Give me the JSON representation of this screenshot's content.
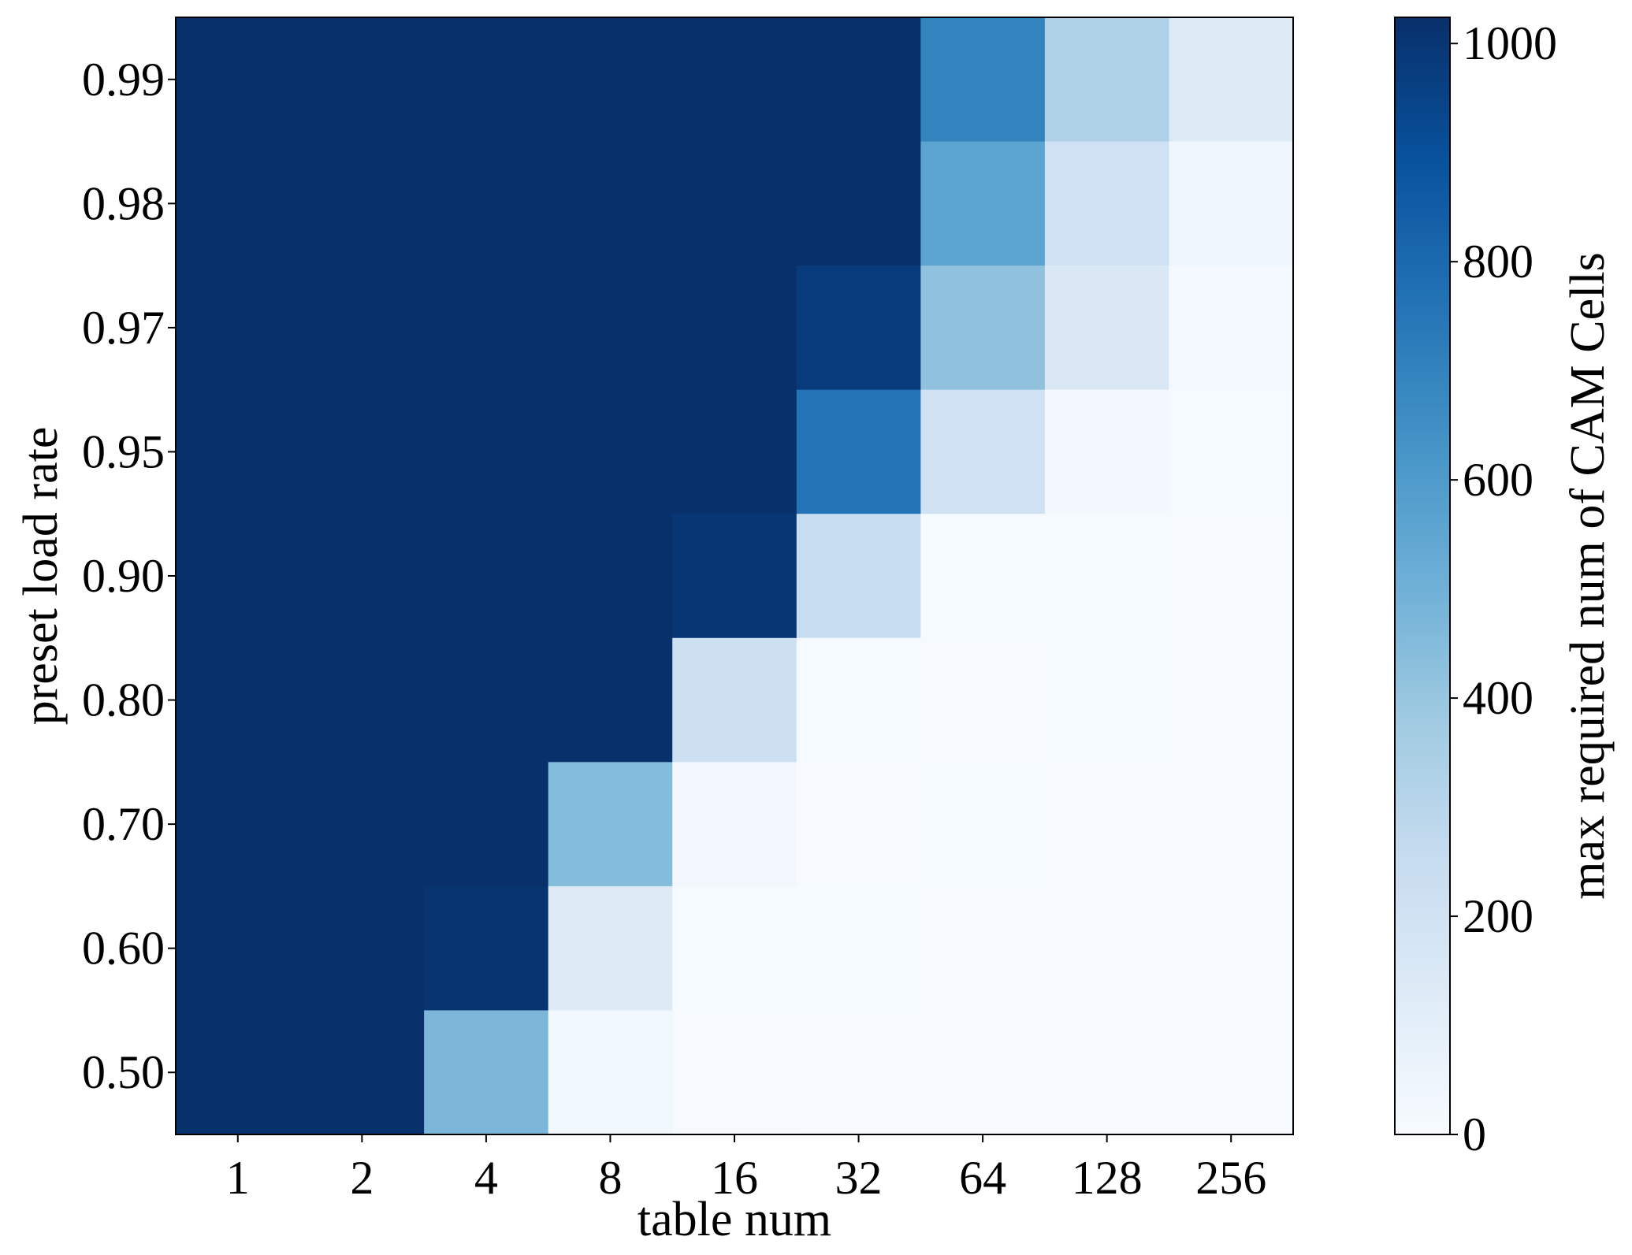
{
  "chart_data": {
    "type": "heatmap",
    "xlabel": "table num",
    "ylabel": "preset load rate",
    "colorbar_label": "max required num of CAM Cells",
    "x_categories": [
      "1",
      "2",
      "4",
      "8",
      "16",
      "32",
      "64",
      "128",
      "256"
    ],
    "y_categories": [
      "0.99",
      "0.98",
      "0.97",
      "0.95",
      "0.90",
      "0.80",
      "0.70",
      "0.60",
      "0.50"
    ],
    "values": [
      [
        1024,
        1024,
        1024,
        1024,
        1024,
        1024,
        700,
        330,
        140
      ],
      [
        1024,
        1024,
        1024,
        1024,
        1024,
        1024,
        560,
        210,
        40
      ],
      [
        1024,
        1024,
        1024,
        1024,
        1024,
        980,
        420,
        150,
        20
      ],
      [
        1024,
        1024,
        1024,
        1024,
        1024,
        760,
        210,
        25,
        12
      ],
      [
        1024,
        1024,
        1024,
        1024,
        1000,
        240,
        12,
        8,
        5
      ],
      [
        1024,
        1024,
        1024,
        1024,
        220,
        12,
        5,
        3,
        2
      ],
      [
        1024,
        1024,
        1024,
        450,
        30,
        6,
        3,
        2,
        1
      ],
      [
        1024,
        1024,
        1010,
        130,
        8,
        3,
        2,
        1,
        1
      ],
      [
        1024,
        1024,
        470,
        35,
        5,
        2,
        1,
        1,
        1
      ]
    ],
    "colorbar_ticks": [
      "0",
      "200",
      "400",
      "600",
      "800",
      "1000"
    ],
    "vmin": 0,
    "vmax": 1024,
    "colormap": "Blues",
    "colormap_stops": [
      "#f7fbff",
      "#deebf7",
      "#c6dbef",
      "#9ecae1",
      "#6baed6",
      "#4292c6",
      "#2171b5",
      "#08519c",
      "#08306b"
    ],
    "grid": false
  }
}
